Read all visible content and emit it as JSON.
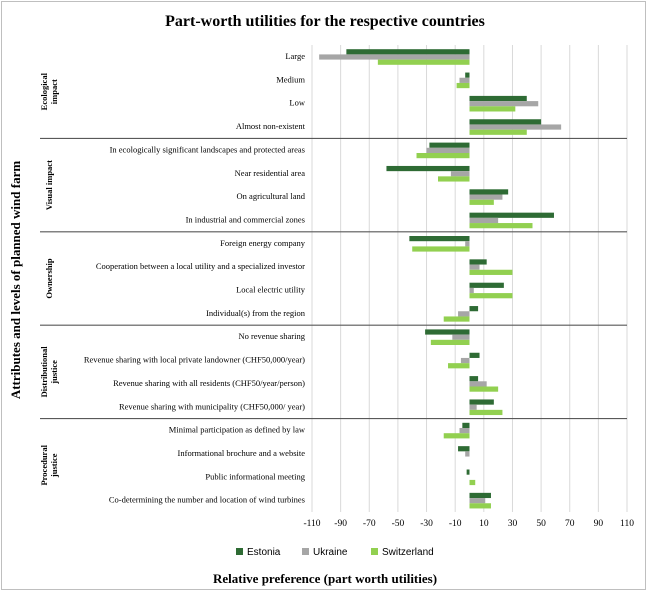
{
  "chart_data": {
    "type": "bar",
    "orientation": "horizontal",
    "title": "Part-worth utilities for the respective countries",
    "xlabel": "Relative preference (part worth utilities)",
    "ylabel": "Attributes and levels of planned wind farm",
    "xlim": [
      -110,
      110
    ],
    "xticks": [
      "-110",
      "-90",
      "-70",
      "-50",
      "-30",
      "-10",
      "10",
      "30",
      "50",
      "70",
      "90",
      "110"
    ],
    "xtick_values": [
      -110,
      -90,
      -70,
      -50,
      -30,
      -10,
      10,
      30,
      50,
      70,
      90,
      110
    ],
    "grid": true,
    "legend_position": "bottom",
    "groups": [
      {
        "name": "Ecological impact",
        "name_lines": [
          "Ecological",
          "impact"
        ],
        "levels": [
          "Large",
          "Medium",
          "Low",
          "Almost non-existent"
        ]
      },
      {
        "name": "Visual impact",
        "name_lines": [
          "Visual impact"
        ],
        "levels": [
          "In ecologically significant landscapes and protected areas",
          "Near residential area",
          "On agricultural land",
          "In industrial and commercial zones"
        ]
      },
      {
        "name": "Ownership",
        "name_lines": [
          "Ownership"
        ],
        "levels": [
          "Foreign energy company",
          "Cooperation between a local utility and a specialized investor",
          "Local electric utility",
          "Individual(s) from the region"
        ]
      },
      {
        "name": "Distributional justice",
        "name_lines": [
          "Distributional",
          "justice"
        ],
        "levels": [
          "No revenue sharing",
          "Revenue sharing with local private landowner (CHF50,000/year)",
          "Revenue sharing with all residents (CHF50/year/person)",
          "Revenue sharing with municipality (CHF50,000/ year)"
        ]
      },
      {
        "name": "Procedural justice",
        "name_lines": [
          "Procedural",
          "justice"
        ],
        "levels": [
          "Minimal participation as defined by law",
          "Informational brochure and a website",
          "Public informational meeting",
          "Co-determining the number and location of wind turbines"
        ]
      }
    ],
    "series": [
      {
        "name": "Estonia",
        "color": "#2e6b34",
        "values": [
          -86,
          -3,
          40,
          50,
          -28,
          -58,
          27,
          59,
          -42,
          12,
          24,
          6,
          -31,
          7,
          6,
          17,
          -5,
          -8,
          -2,
          15
        ]
      },
      {
        "name": "Ukraine",
        "color": "#a6a6a6",
        "values": [
          -105,
          -7,
          48,
          64,
          -30,
          -13,
          23,
          20,
          -3,
          7,
          3,
          -8,
          -12,
          -6,
          12,
          5,
          -7,
          -3,
          0,
          11
        ]
      },
      {
        "name": "Switzerland",
        "color": "#92d050",
        "values": [
          -64,
          -9,
          32,
          40,
          -37,
          -22,
          17,
          44,
          -40,
          30,
          30,
          -18,
          -27,
          -15,
          20,
          23,
          -18,
          0,
          4,
          15
        ]
      }
    ]
  }
}
